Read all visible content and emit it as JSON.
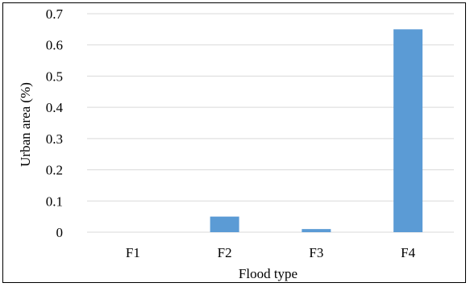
{
  "chart_data": {
    "type": "bar",
    "categories": [
      "F1",
      "F2",
      "F3",
      "F4"
    ],
    "values": [
      0,
      0.05,
      0.01,
      0.65
    ],
    "xlabel": "Flood type",
    "ylabel": "Urban area (%)",
    "ylim": [
      0,
      0.7
    ],
    "yticks": [
      "0",
      "0.1",
      "0.2",
      "0.3",
      "0.4",
      "0.5",
      "0.6",
      "0.7"
    ],
    "grid": "horizontal",
    "legend": "none",
    "colors": {
      "bar": "#5b9bd5",
      "grid": "#d9d9d9",
      "axis": "#000000"
    }
  }
}
